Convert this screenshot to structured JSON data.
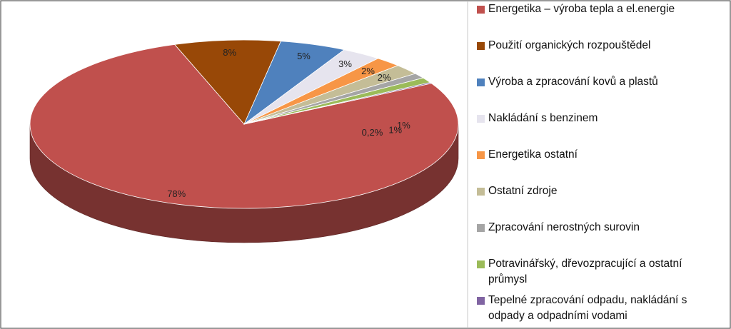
{
  "chart_data": {
    "type": "pie",
    "style": "3d",
    "legend_position": "right",
    "title": "",
    "slices": [
      {
        "label": "Energetika – výroba tepla a el.energie",
        "label_lines": [
          "Energetika – výroba tepla a el.energie"
        ],
        "value": 77.8,
        "display": "78%",
        "color": "#c0504d"
      },
      {
        "label": "Použití organických rozpouštědel",
        "label_lines": [
          "Použití organických rozpouštědel"
        ],
        "value": 8.0,
        "display": "8%",
        "color": "#984807"
      },
      {
        "label": "Výroba a zpracování kovů a plastů",
        "label_lines": [
          "Výroba a zpracování kovů a plastů"
        ],
        "value": 5.0,
        "display": "5%",
        "color": "#4f81bd"
      },
      {
        "label": "Nakládání s benzinem",
        "label_lines": [
          "Nakládání s benzinem"
        ],
        "value": 3.0,
        "display": "3%",
        "color": "#e6e4ee"
      },
      {
        "label": "Energetika ostatní",
        "label_lines": [
          "Energetika ostatní"
        ],
        "value": 2.0,
        "display": "2%",
        "color": "#f79646"
      },
      {
        "label": "Ostatní zdroje",
        "label_lines": [
          "Ostatní zdroje"
        ],
        "value": 2.0,
        "display": "2%",
        "color": "#c4bd97"
      },
      {
        "label": "Zpracování nerostných surovin",
        "label_lines": [
          "Zpracování nerostných surovin"
        ],
        "value": 1.0,
        "display": "1%",
        "color": "#a5a5a5"
      },
      {
        "label": "Potravinářský, dřevozpracující a ostatní průmysl",
        "label_lines": [
          "Potravinářský, dřevozpracující a ostatní",
          "průmysl"
        ],
        "value": 1.0,
        "display": "1%",
        "color": "#9bbb59"
      },
      {
        "label": "Tepelné zpracování odpadu, nakládání s odpady a odpadními vodami",
        "label_lines": [
          "Tepelné zpracování odpadu, nakládání s",
          "odpady a odpadními vodami"
        ],
        "value": 0.2,
        "display": "0,2%",
        "color": "#8064a2"
      }
    ]
  }
}
